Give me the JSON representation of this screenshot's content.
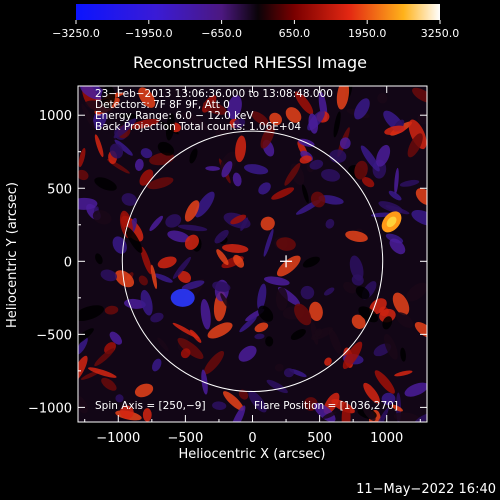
{
  "chart_data": {
    "type": "heatmap",
    "title": "Reconstructed RHESSI Image",
    "xlabel": "Heliocentric X (arcsec)",
    "ylabel": "Heliocentric Y (arcsec)",
    "xlim": [
      -1300,
      1300
    ],
    "ylim": [
      -1100,
      1200
    ],
    "x_ticks": [
      -1000,
      -500,
      0,
      500,
      1000
    ],
    "x_tick_labels": [
      "−1000",
      "−500",
      "0",
      "500",
      "1000"
    ],
    "y_ticks": [
      -1000,
      -500,
      0,
      500,
      1000
    ],
    "y_tick_labels": [
      "−1000",
      "−500",
      "0",
      "500",
      "1000"
    ],
    "colorbar": {
      "range": [
        -3250,
        3250
      ],
      "ticks": [
        -3250,
        -1950,
        -650,
        650,
        1950,
        3250
      ],
      "tick_labels": [
        "−3250.0",
        "−1950.0",
        "−650.0",
        "650.0",
        "1950.0",
        "3250.0"
      ]
    },
    "info_lines": [
      "23−Feb−2013 13:06:36.000 to 13:08:48.000",
      "Detectors: 7F 8F 9F, Att 0",
      "Energy Range: 6.0 − 12.0 keV",
      "Back Projection    Total counts: 1.06E+04"
    ],
    "spin_axis_label": "Spin Axis = [250,−9]",
    "flare_position_label": "Flare Position = [1036,270]",
    "solar_disk": {
      "center": [
        0,
        0
      ],
      "radius": 970
    },
    "marker": {
      "label": "+",
      "x": 250,
      "y": 0
    },
    "footer_date": "11−May−2022 16:40",
    "colors": {
      "background": "#000000",
      "overlay": "#ffffff"
    }
  }
}
